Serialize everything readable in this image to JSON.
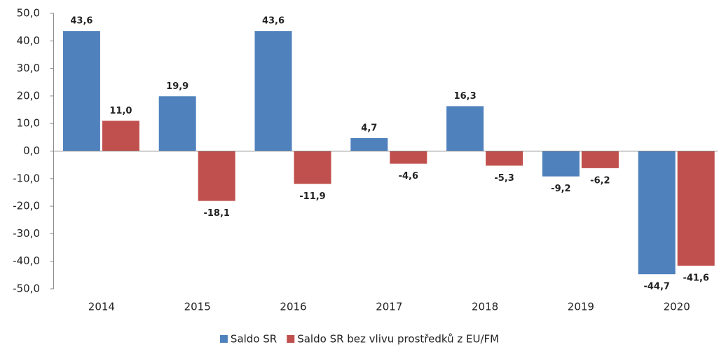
{
  "chart_data": {
    "type": "bar",
    "categories": [
      "2014",
      "2015",
      "2016",
      "2017",
      "2018",
      "2019",
      "2020"
    ],
    "series": [
      {
        "name": "Saldo SR",
        "color": "#4f81bd",
        "values": [
          43.6,
          19.9,
          43.6,
          4.7,
          16.3,
          -9.2,
          -44.7
        ],
        "value_labels": [
          "43,6",
          "19,9",
          "43,6",
          "4,7",
          "16,3",
          "-9,2",
          "-44,7"
        ]
      },
      {
        "name": "Saldo SR bez vlivu prostředků z EU/FM",
        "color": "#c0504d",
        "values": [
          11.0,
          -18.1,
          -11.9,
          -4.6,
          -5.3,
          -6.2,
          -41.6
        ],
        "value_labels": [
          "11,0",
          "-18,1",
          "-11,9",
          "-4,6",
          "-5,3",
          "-6,2",
          "-41,6"
        ]
      }
    ],
    "ylim": [
      -50,
      50
    ],
    "yticks": [
      {
        "value": -50,
        "label": "-50,0"
      },
      {
        "value": -40,
        "label": "-40,0"
      },
      {
        "value": -30,
        "label": "-30,0"
      },
      {
        "value": -20,
        "label": "-20,0"
      },
      {
        "value": -10,
        "label": "-10,0"
      },
      {
        "value": 0,
        "label": "0,0"
      },
      {
        "value": 10,
        "label": "10,0"
      },
      {
        "value": 20,
        "label": "20,0"
      },
      {
        "value": 30,
        "label": "30,0"
      },
      {
        "value": 40,
        "label": "40,0"
      },
      {
        "value": 50,
        "label": "50,0"
      }
    ],
    "legend": "bottom"
  }
}
